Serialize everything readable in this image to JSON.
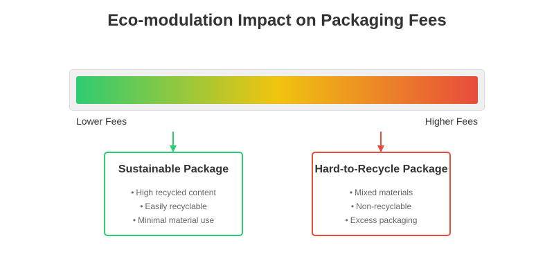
{
  "title": "Eco-modulation Impact on Packaging Fees",
  "scale": {
    "low_label": "Lower Fees",
    "high_label": "Higher Fees",
    "gradient_colors": [
      "#2ecc71",
      "#f1c40f",
      "#e74c3c"
    ]
  },
  "cards": [
    {
      "title": "Sustainable Package",
      "color": "#2ecc71",
      "items": [
        {
          "text": "High recycled content"
        },
        {
          "text": "Easily recyclable"
        },
        {
          "text": "Minimal material use"
        }
      ]
    },
    {
      "title": "Hard-to-Recycle Package",
      "color": "#e74c3c",
      "items": [
        {
          "text": "Mixed materials"
        },
        {
          "text": "Non-recyclable"
        },
        {
          "text": "Excess packaging"
        }
      ]
    }
  ],
  "bullet": "•"
}
